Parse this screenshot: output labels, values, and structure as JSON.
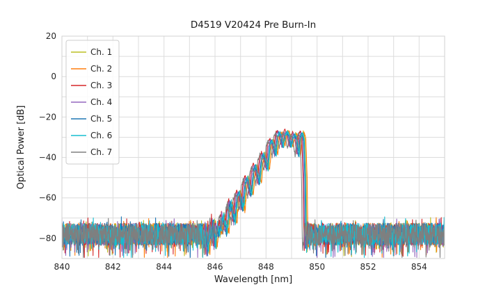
{
  "chart_data": {
    "type": "line",
    "title": "D4519 V20424 Pre Burn-In",
    "xlabel": "Wavelength [nm]",
    "ylabel": "Optical Power [dB]",
    "xlim": [
      840,
      855
    ],
    "ylim": [
      -90,
      20
    ],
    "xticks": [
      840,
      842,
      844,
      846,
      848,
      850,
      852,
      854
    ],
    "xtick_labels": [
      "840",
      "842",
      "844",
      "846",
      "848",
      "850",
      "852",
      "854"
    ],
    "yticks": [
      20,
      0,
      -20,
      -40,
      -60,
      -80
    ],
    "ytick_labels": [
      "20",
      "0",
      "−20",
      "−40",
      "−60",
      "−80"
    ],
    "grid": true,
    "grid_step_x": 1,
    "grid_step_y": 10,
    "legend_position": "upper left",
    "background": "#ffffff",
    "grid_color": "#dcdcdc",
    "sample_step": 0.01,
    "series": [
      {
        "name": "Ch. 1",
        "color": "#bcbd22",
        "shift": 0.08,
        "amp": 0.3,
        "seed": 101
      },
      {
        "name": "Ch. 2",
        "color": "#ff7f0e",
        "shift": 0.12,
        "amp": 0.0,
        "seed": 102
      },
      {
        "name": "Ch. 3",
        "color": "#d62728",
        "shift": -0.04,
        "amp": 0.8,
        "seed": 103
      },
      {
        "name": "Ch. 4",
        "color": "#9467bd",
        "shift": -0.01,
        "amp": 0.0,
        "seed": 104
      },
      {
        "name": "Ch. 5",
        "color": "#1f77b4",
        "shift": 0.03,
        "amp": -0.3,
        "seed": 105
      },
      {
        "name": "Ch. 6",
        "color": "#17becf",
        "shift": 0.06,
        "amp": 0.0,
        "seed": 106
      },
      {
        "name": "Ch. 7",
        "color": "#7f7f7f",
        "shift": -0.1,
        "amp": -0.5,
        "seed": 107
      }
    ],
    "signal_range": [
      845.5,
      849.58
    ],
    "signal_keypoints": [
      [
        845.5,
        -77
      ],
      [
        845.56,
        -84
      ],
      [
        845.62,
        -73
      ],
      [
        845.68,
        -87
      ],
      [
        845.76,
        -74
      ],
      [
        845.82,
        -81
      ],
      [
        845.9,
        -71
      ],
      [
        845.97,
        -85
      ],
      [
        846.04,
        -73
      ],
      [
        846.12,
        -78
      ],
      [
        846.2,
        -74
      ],
      [
        846.28,
        -69
      ],
      [
        846.36,
        -73
      ],
      [
        846.42,
        -77
      ],
      [
        846.5,
        -66
      ],
      [
        846.58,
        -63
      ],
      [
        846.66,
        -67
      ],
      [
        846.74,
        -72
      ],
      [
        846.82,
        -60
      ],
      [
        846.9,
        -57
      ],
      [
        846.98,
        -61
      ],
      [
        847.06,
        -66
      ],
      [
        847.14,
        -53
      ],
      [
        847.22,
        -50
      ],
      [
        847.3,
        -54
      ],
      [
        847.38,
        -59
      ],
      [
        847.46,
        -47
      ],
      [
        847.54,
        -44
      ],
      [
        847.62,
        -47.5
      ],
      [
        847.7,
        -53
      ],
      [
        847.78,
        -41
      ],
      [
        847.86,
        -38
      ],
      [
        847.94,
        -41.5
      ],
      [
        848.02,
        -46
      ],
      [
        848.1,
        -34
      ],
      [
        848.18,
        -31.5
      ],
      [
        848.26,
        -34
      ],
      [
        848.34,
        -39
      ],
      [
        848.4,
        -29.5
      ],
      [
        848.48,
        -27.5
      ],
      [
        848.56,
        -30
      ],
      [
        848.62,
        -34.5
      ],
      [
        848.7,
        -29
      ],
      [
        848.78,
        -27.3
      ],
      [
        848.86,
        -29.5
      ],
      [
        848.94,
        -35
      ],
      [
        849.0,
        -30.5
      ],
      [
        849.08,
        -28.3
      ],
      [
        849.16,
        -31
      ],
      [
        849.24,
        -39
      ],
      [
        849.3,
        -30
      ],
      [
        849.38,
        -27.7
      ],
      [
        849.44,
        -31
      ],
      [
        849.49,
        -50
      ],
      [
        849.53,
        -86
      ],
      [
        849.58,
        -80
      ]
    ],
    "noise": {
      "mean": -78,
      "spread": 11,
      "spike_chance": 0.12,
      "spike_depth": 8,
      "up_spike_chance": 0.06,
      "up_spike": 3.5
    }
  }
}
